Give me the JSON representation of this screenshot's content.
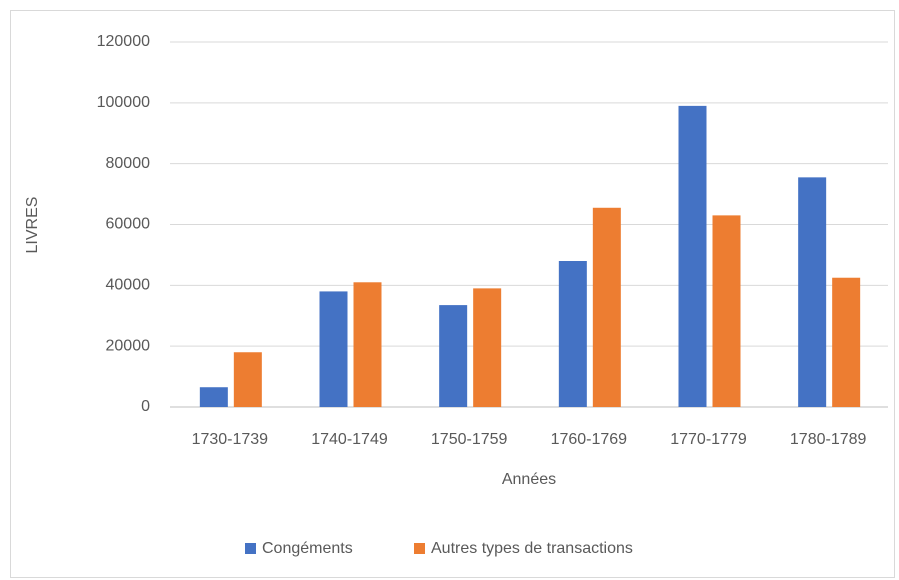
{
  "chart_data": {
    "type": "bar",
    "x_label": "Années",
    "y_label": "LIVRES",
    "categories": [
      "1730-1739",
      "1740-1749",
      "1750-1759",
      "1760-1769",
      "1770-1779",
      "1780-1789"
    ],
    "series": [
      {
        "name": "Congéments",
        "color": "#4472c4",
        "values": [
          6500,
          38000,
          33500,
          48000,
          99000,
          75500
        ]
      },
      {
        "name": "Autres types de transactions",
        "color": "#ed7d31",
        "values": [
          18000,
          41000,
          39000,
          65500,
          63000,
          42500
        ]
      }
    ],
    "ylim": [
      0,
      120000
    ],
    "yticks": [
      0,
      20000,
      40000,
      60000,
      80000,
      100000,
      120000
    ],
    "grid": true,
    "legend": "bottom"
  }
}
